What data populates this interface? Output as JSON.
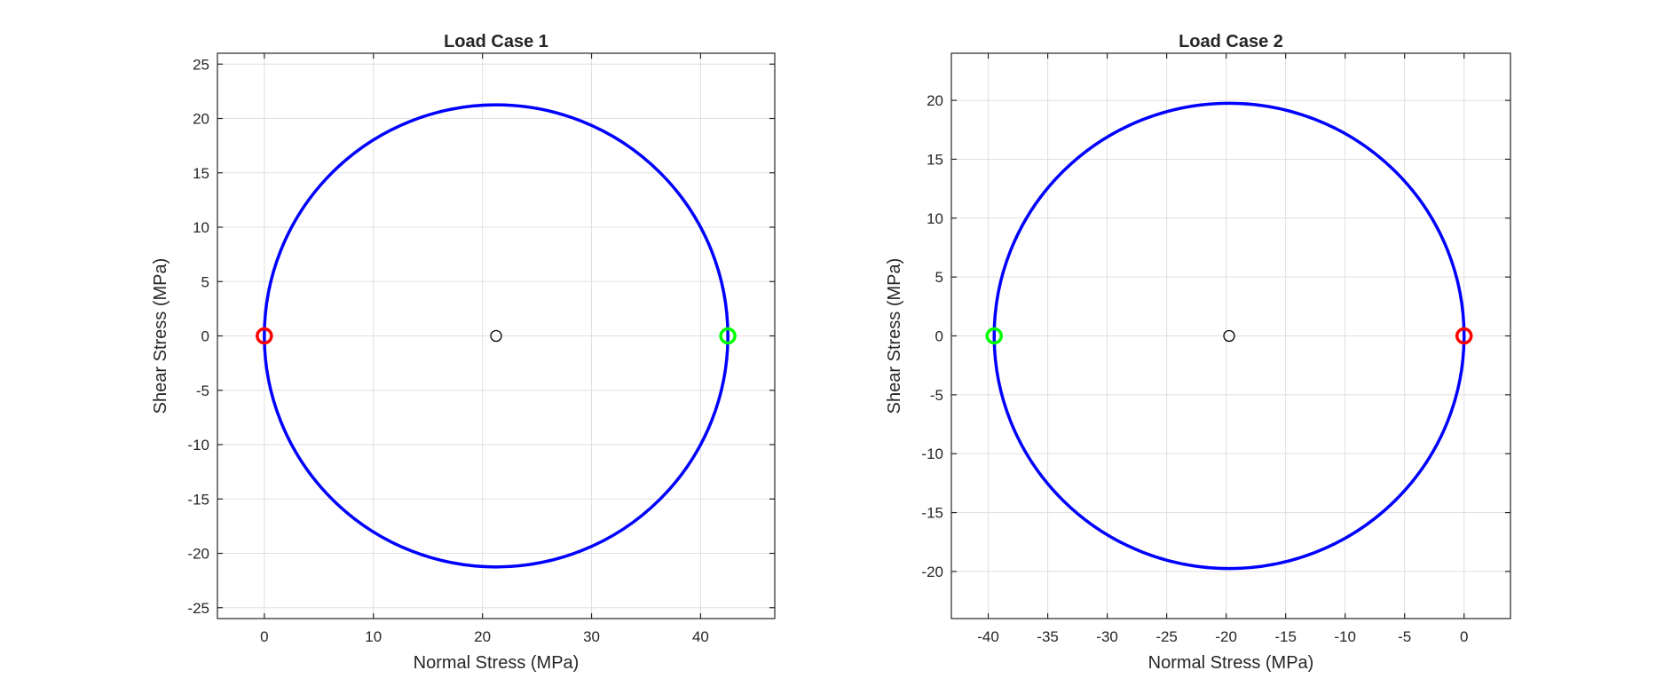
{
  "chart_data": [
    {
      "type": "line",
      "title": "Load Case 1",
      "xlabel": "Normal Stress (MPa)",
      "ylabel": "Shear Stress (MPa)",
      "xlim": [
        -4.3,
        46.8
      ],
      "ylim": [
        -26,
        26
      ],
      "xticks": [
        0,
        10,
        20,
        30,
        40
      ],
      "yticks": [
        -25,
        -20,
        -15,
        -10,
        -5,
        0,
        5,
        10,
        15,
        20,
        25
      ],
      "grid": true,
      "circle": {
        "center": [
          21.25,
          0
        ],
        "radius": 21.25,
        "color": "#0000ff"
      },
      "center_point": {
        "x": 21.25,
        "y": 0,
        "color": "#000000"
      },
      "points": [
        {
          "x": 0,
          "y": 0,
          "color": "#ff0000"
        },
        {
          "x": 42.5,
          "y": 0,
          "color": "#00ff00"
        },
        {
          "x": 42.5,
          "y": 0,
          "color": "#0000ff"
        }
      ]
    },
    {
      "type": "line",
      "title": "Load Case 2",
      "xlabel": "Normal Stress (MPa)",
      "ylabel": "Shear Stress (MPa)",
      "xlim": [
        -43.1,
        3.9
      ],
      "ylim": [
        -24,
        24
      ],
      "xticks": [
        -40,
        -35,
        -30,
        -25,
        -20,
        -15,
        -10,
        -5,
        0
      ],
      "yticks": [
        -20,
        -15,
        -10,
        -5,
        0,
        5,
        10,
        15,
        20
      ],
      "grid": true,
      "circle": {
        "center": [
          -19.75,
          0
        ],
        "radius": 19.75,
        "color": "#0000ff"
      },
      "center_point": {
        "x": -19.75,
        "y": 0,
        "color": "#000000"
      },
      "points": [
        {
          "x": -39.5,
          "y": 0,
          "color": "#00ff00"
        },
        {
          "x": -39.5,
          "y": 0,
          "color": "#0000ff"
        },
        {
          "x": 0,
          "y": 0,
          "color": "#ff0000"
        }
      ]
    }
  ]
}
